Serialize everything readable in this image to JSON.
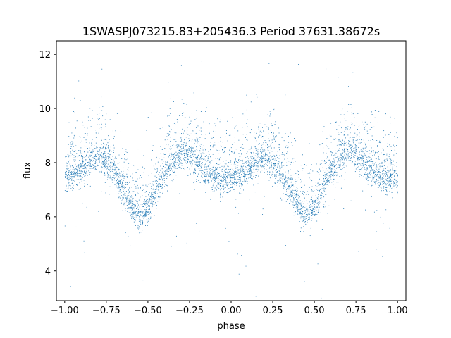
{
  "chart_data": {
    "type": "scatter",
    "title": "1SWASPJ073215.83+205436.3 Period 37631.38672s",
    "xlabel": "phase",
    "ylabel": "flux",
    "xlim": [
      -1.05,
      1.05
    ],
    "ylim": [
      2.9,
      12.5
    ],
    "grid": false,
    "legend": "none",
    "point_color": "#1f77b4",
    "x_ticks": [
      -1.0,
      -0.75,
      -0.5,
      -0.25,
      0.0,
      0.25,
      0.5,
      0.75,
      1.0
    ],
    "x_tick_labels": [
      "−1.00",
      "−0.75",
      "−0.50",
      "−0.25",
      "0.00",
      "0.25",
      "0.50",
      "0.75",
      "1.00"
    ],
    "y_ticks": [
      4,
      6,
      8,
      10,
      12
    ],
    "y_tick_labels": [
      "4",
      "6",
      "8",
      "10",
      "12"
    ],
    "series": [
      {
        "x": [
          -1.0,
          -0.95,
          -0.9,
          -0.85,
          -0.8,
          -0.75,
          -0.7,
          -0.65,
          -0.6,
          -0.55,
          -0.5,
          -0.45,
          -0.4,
          -0.35,
          -0.3,
          -0.25,
          -0.2,
          -0.15,
          -0.1,
          -0.05,
          0.0,
          0.05,
          0.1,
          0.15,
          0.2,
          0.25,
          0.3,
          0.35,
          0.4,
          0.45,
          0.5,
          0.55,
          0.6,
          0.65,
          0.7,
          0.75,
          0.8,
          0.85,
          0.9,
          0.95,
          1.0
        ],
        "y": [
          7.4,
          7.6,
          7.8,
          8.0,
          8.2,
          8.1,
          7.7,
          7.0,
          6.4,
          6.0,
          6.3,
          7.0,
          7.7,
          8.1,
          8.4,
          8.3,
          8.0,
          7.7,
          7.5,
          7.4,
          7.4,
          7.5,
          7.7,
          8.0,
          8.2,
          8.0,
          7.6,
          7.0,
          6.4,
          6.0,
          6.3,
          7.0,
          7.7,
          8.1,
          8.4,
          8.3,
          8.0,
          7.7,
          7.5,
          7.4,
          7.4
        ]
      }
    ]
  }
}
